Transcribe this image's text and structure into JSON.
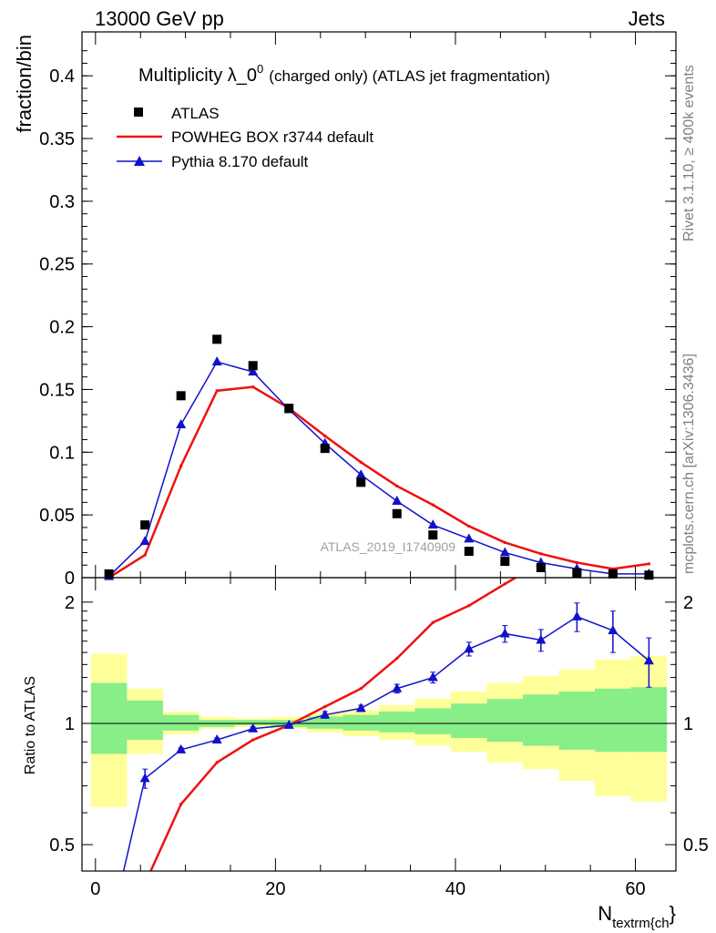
{
  "header": {
    "left": "13000 GeV pp",
    "right": "Jets"
  },
  "side": {
    "top": "Rivet 3.1.10, ≥ 400k events",
    "bottom": "mcplots.cern.ch [arXiv:1306.3436]"
  },
  "watermark": "ATLAS_2019_I1740909",
  "chart_data": [
    {
      "type": "line",
      "panel": "main",
      "title": "Multiplicity λ_0",
      "title_sup": "0",
      "title_suffix": "(charged only) (ATLAS jet fragmentation)",
      "ylabel": "fraction/bin",
      "xlabel": "N",
      "xlabel_sub": "textrm{ch",
      "xlabel_suffix": "}",
      "xlim": [
        -1.5,
        64.5
      ],
      "ylim": [
        0,
        0.435
      ],
      "y_ticks": [
        0,
        0.05,
        0.1,
        0.15,
        0.2,
        0.25,
        0.3,
        0.35,
        0.4
      ],
      "y_tick_labels": [
        "0",
        "0.05",
        "0.1",
        "0.15",
        "0.2",
        "0.25",
        "0.3",
        "0.35",
        "0.4"
      ],
      "legend_position": "top-left",
      "series": [
        {
          "name": "ATLAS",
          "style": "data",
          "color": "#000000",
          "x": [
            1.5,
            5.5,
            9.5,
            13.5,
            17.5,
            21.5,
            25.5,
            29.5,
            33.5,
            37.5,
            41.5,
            45.5,
            49.5,
            53.5,
            57.5,
            61.5
          ],
          "y": [
            0.003,
            0.042,
            0.145,
            0.19,
            0.169,
            0.135,
            0.103,
            0.076,
            0.051,
            0.034,
            0.021,
            0.013,
            0.008,
            0.004,
            0.003,
            0.002
          ]
        },
        {
          "name": "POWHEG BOX r3744 default",
          "style": "line",
          "color": "#ee1111",
          "x": [
            1.5,
            5.5,
            9.5,
            13.5,
            17.5,
            21.5,
            25.5,
            29.5,
            33.5,
            37.5,
            41.5,
            45.5,
            49.5,
            53.5,
            57.5,
            61.5
          ],
          "y": [
            0.0,
            0.018,
            0.089,
            0.149,
            0.152,
            0.135,
            0.113,
            0.092,
            0.073,
            0.058,
            0.041,
            0.028,
            0.019,
            0.012,
            0.007,
            0.011
          ]
        },
        {
          "name": "Pythia 8.170 default",
          "style": "triangle-line",
          "color": "#1111cc",
          "x": [
            1.5,
            5.5,
            9.5,
            13.5,
            17.5,
            21.5,
            25.5,
            29.5,
            33.5,
            37.5,
            41.5,
            45.5,
            49.5,
            53.5,
            57.5,
            61.5
          ],
          "y": [
            0.001,
            0.029,
            0.122,
            0.172,
            0.164,
            0.134,
            0.107,
            0.082,
            0.061,
            0.042,
            0.031,
            0.02,
            0.012,
            0.007,
            0.003,
            0.003
          ]
        }
      ]
    },
    {
      "type": "line",
      "panel": "ratio",
      "ylabel": "Ratio to ATLAS",
      "xlim": [
        -1.5,
        64.5
      ],
      "ylim": [
        0.43,
        2.3
      ],
      "log_y": true,
      "x_ticks": [
        0,
        20,
        40,
        60
      ],
      "x_tick_labels": [
        "0",
        "20",
        "40",
        "60"
      ],
      "y_ticks": [
        0.5,
        1,
        2
      ],
      "y_tick_labels": [
        "0.5",
        "1",
        "2"
      ],
      "bands": {
        "x_edges": [
          -0.5,
          3.5,
          7.5,
          11.5,
          15.5,
          19.5,
          23.5,
          27.5,
          31.5,
          35.5,
          39.5,
          43.5,
          47.5,
          51.5,
          55.5,
          59.5,
          63.5
        ],
        "yellow_lo": [
          0.62,
          0.84,
          0.94,
          0.97,
          0.98,
          0.97,
          0.95,
          0.93,
          0.91,
          0.88,
          0.85,
          0.8,
          0.77,
          0.72,
          0.66,
          0.64
        ],
        "yellow_hi": [
          1.49,
          1.22,
          1.07,
          1.04,
          1.03,
          1.04,
          1.06,
          1.08,
          1.11,
          1.15,
          1.2,
          1.26,
          1.31,
          1.36,
          1.44,
          1.47
        ],
        "green_lo": [
          0.84,
          0.91,
          0.96,
          0.98,
          0.99,
          0.98,
          0.97,
          0.96,
          0.95,
          0.94,
          0.92,
          0.9,
          0.88,
          0.86,
          0.85,
          0.85
        ],
        "green_hi": [
          1.26,
          1.14,
          1.05,
          1.02,
          1.02,
          1.02,
          1.04,
          1.05,
          1.07,
          1.09,
          1.12,
          1.15,
          1.18,
          1.2,
          1.22,
          1.23
        ],
        "yellow_color": "#ffff99",
        "green_color": "#88ee88"
      },
      "series": [
        {
          "name": "POWHEG BOX r3744 default",
          "color": "#ee1111",
          "x": [
            5.5,
            9.5,
            13.5,
            17.5,
            21.5,
            25.5,
            29.5,
            33.5,
            37.5,
            41.5,
            45.5,
            49.5
          ],
          "y": [
            0.4,
            0.63,
            0.8,
            0.91,
            0.99,
            1.1,
            1.22,
            1.45,
            1.78,
            1.96,
            2.22,
            2.5
          ]
        },
        {
          "name": "Pythia 8.170 default",
          "color": "#1111cc",
          "x": [
            1.5,
            5.5,
            9.5,
            13.5,
            17.5,
            21.5,
            25.5,
            29.5,
            33.5,
            37.5,
            41.5,
            45.5,
            49.5,
            53.5,
            57.5,
            61.5
          ],
          "y": [
            0.3,
            0.73,
            0.86,
            0.91,
            0.97,
            0.99,
            1.05,
            1.09,
            1.22,
            1.3,
            1.53,
            1.67,
            1.61,
            1.84,
            1.7,
            1.43
          ],
          "err": [
            0,
            0.04,
            0.01,
            0.01,
            0.01,
            0.01,
            0.02,
            0.02,
            0.03,
            0.04,
            0.06,
            0.08,
            0.1,
            0.15,
            0.2,
            0.2
          ]
        }
      ]
    }
  ]
}
